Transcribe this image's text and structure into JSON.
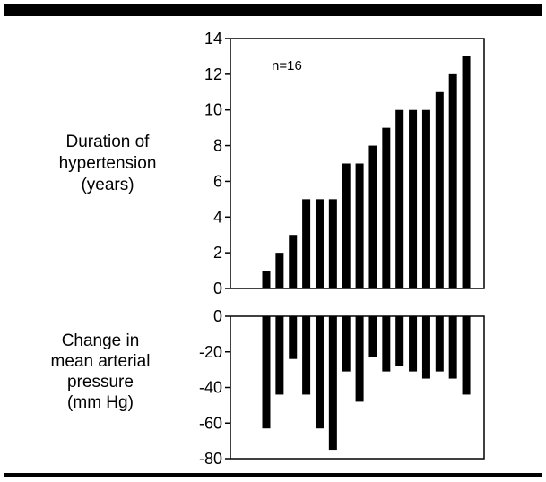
{
  "chart_data": [
    {
      "type": "bar",
      "ylabel_lines": [
        "Duration of",
        "hypertension",
        "(years)"
      ],
      "annotation": "n=16",
      "ylim": [
        0,
        14
      ],
      "yticks": [
        0,
        2,
        4,
        6,
        8,
        10,
        12,
        14
      ],
      "ytick_labels": [
        "0",
        "2",
        "4",
        "6",
        "8",
        "10",
        "12",
        "14"
      ],
      "values": [
        1,
        2,
        3,
        5,
        5,
        5,
        7,
        7,
        8,
        9,
        10,
        10,
        10,
        11,
        12,
        13
      ],
      "bar_color": "#000000"
    },
    {
      "type": "bar",
      "ylabel_lines": [
        "Change in",
        "mean arterial",
        "pressure",
        "(mm Hg)"
      ],
      "ylim": [
        -80,
        0
      ],
      "yticks": [
        0,
        -20,
        -40,
        -60,
        -80
      ],
      "ytick_labels": [
        "0",
        "-20",
        "-40",
        "-60",
        "-80"
      ],
      "values": [
        -63,
        -44,
        -24,
        -44,
        -63,
        -75,
        -31,
        -48,
        -23,
        -31,
        -28,
        -31,
        -35,
        -31,
        -35,
        -44
      ],
      "bar_color": "#000000"
    }
  ]
}
